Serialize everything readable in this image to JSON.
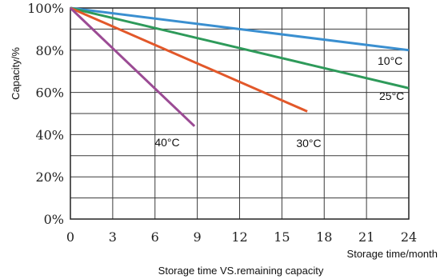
{
  "chart_data": {
    "type": "line",
    "title": "",
    "caption": "Storage time VS.remaining capacity",
    "xlabel": "Storage time/month",
    "ylabel": "Capacity/%",
    "xlim": [
      0,
      24
    ],
    "ylim": [
      0,
      100
    ],
    "x_ticks": [
      0,
      3,
      6,
      9,
      12,
      15,
      18,
      21,
      24
    ],
    "y_ticks": [
      0,
      20,
      40,
      60,
      80,
      100
    ],
    "y_tick_labels": [
      "0%",
      "20%",
      "40%",
      "60%",
      "80%",
      "100%"
    ],
    "grid": true,
    "legend": "inline labels",
    "series": [
      {
        "name": "10°C",
        "color": "#3a8fd0",
        "x": [
          0,
          24
        ],
        "y": [
          100,
          80
        ]
      },
      {
        "name": "25°C",
        "color": "#2e9a5a",
        "x": [
          0,
          24
        ],
        "y": [
          100,
          62
        ]
      },
      {
        "name": "30°C",
        "color": "#e2582a",
        "x": [
          0,
          16.8
        ],
        "y": [
          100,
          51
        ]
      },
      {
        "name": "40°C",
        "color": "#9b4b94",
        "x": [
          0,
          8.8
        ],
        "y": [
          100,
          44
        ]
      }
    ]
  }
}
